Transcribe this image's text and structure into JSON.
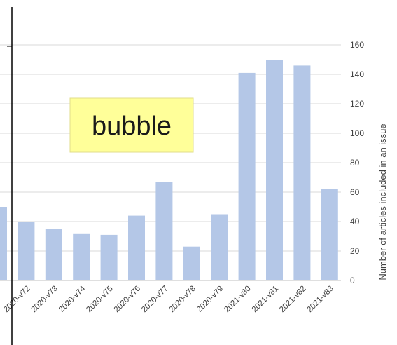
{
  "chart_data": {
    "type": "bar",
    "categories": [
      "",
      "2020-v72",
      "2020-v73",
      "2020-v74",
      "2020-v75",
      "2020-v76",
      "2020-v77",
      "2020-v78",
      "2020-v79",
      "2021-v80",
      "2021-v81",
      "2021-v82",
      "2021-v83"
    ],
    "values": [
      50,
      40,
      35,
      32,
      31,
      44,
      67,
      23,
      45,
      141,
      150,
      146,
      62
    ],
    "y_ticks": [
      "0",
      "20",
      "40",
      "60",
      "80",
      "100",
      "120",
      "140",
      "160"
    ],
    "ylim": [
      0,
      160
    ],
    "ylabel": "Number of articles included in an issue",
    "xlabel": "",
    "title": "",
    "grid": true,
    "bar_color": "#b4c7e7",
    "annotation": "bubble",
    "annotation_bg": "#ffff99"
  }
}
